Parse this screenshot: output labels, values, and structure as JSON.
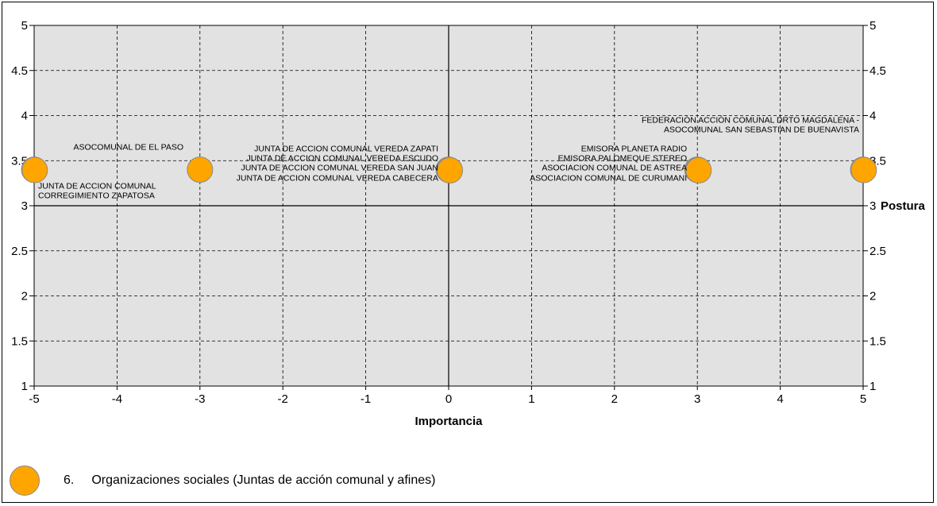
{
  "chart_data": {
    "type": "scatter",
    "xlabel": "Importancia",
    "ylabel": "Postura",
    "xlim": [
      -5,
      5
    ],
    "ylim": [
      1,
      5
    ],
    "xticks": [
      "-5",
      "-4",
      "-3",
      "-2",
      "-1",
      "0",
      "1",
      "2",
      "3",
      "4",
      "5"
    ],
    "yticks": [
      "1",
      "1.5",
      "2",
      "2.5",
      "3",
      "3.5",
      "4",
      "4.5",
      "5"
    ],
    "grid": true,
    "points": [
      {
        "x": -5,
        "y": 3.4,
        "labels": [
          "JUNTA DE ACCION COMUNAL",
          "CORREGIMIENTO ZAPATOSA"
        ]
      },
      {
        "x": -3,
        "y": 3.4,
        "labels": [
          "ASOCOMUNAL DE EL PASO"
        ]
      },
      {
        "x": 0,
        "y": 3.4,
        "labels": [
          "JUNTA DE ACCION COMUNAL VEREDA ZAPATI",
          "JUNTA DE ACCION COMUNAL VEREDA ESCUDO",
          "JUNTA DE ACCION COMUNAL VEREDA SAN JUAN",
          "JUNTA DE ACCION COMUNAL VEREDA CABECERA"
        ]
      },
      {
        "x": 3,
        "y": 3.4,
        "labels": [
          "EMISORA PLANETA RADIO",
          "EMISORA PALOMEQUE STEREO",
          "ASOCIACION COMUNAL DE ASTREA",
          "ASOCIACION COMUNAL DE CURUMANI"
        ]
      },
      {
        "x": 5,
        "y": 3.4,
        "labels": [
          "FEDERACIÓN ACCIÓN COMUNAL DRTO MAGDALENA -",
          "ASOCOMUNAL SAN SEBASTIAN DE BUENAVISTA"
        ]
      }
    ],
    "marker_color": "#FFA500",
    "plot_background": "#E2E2E2"
  },
  "legend": {
    "number": "6.",
    "text": "Organizaciones sociales (Juntas de acción comunal y afines)",
    "icon": "orange-circle-icon"
  }
}
